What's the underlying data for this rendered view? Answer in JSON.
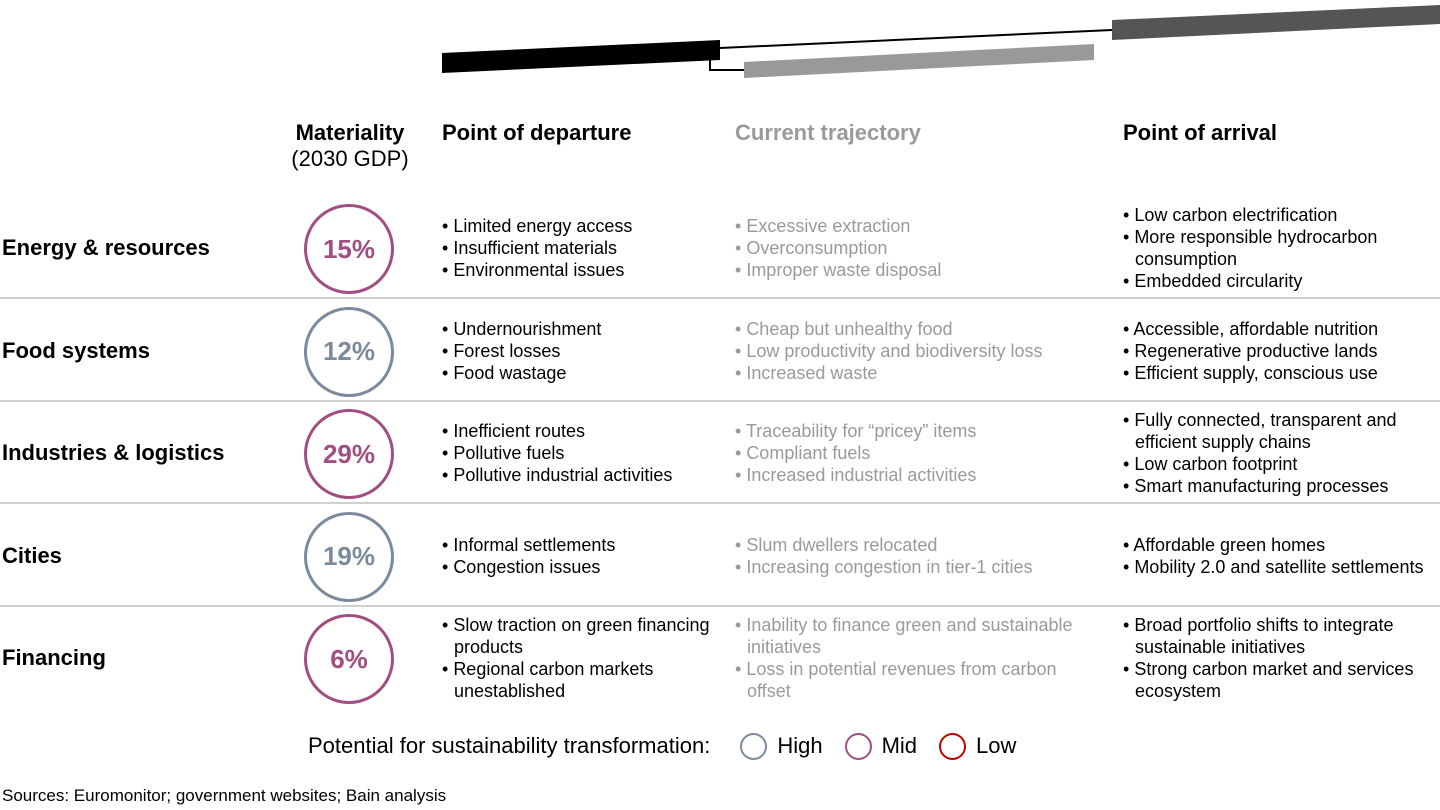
{
  "header": {
    "materiality": [
      "Materiality",
      "(2030 GDP)"
    ],
    "departure": "Point of departure",
    "trajectory": "Current trajectory",
    "arrival": "Point of arrival"
  },
  "rows": [
    {
      "name": "Energy & resources",
      "materiality": "15%",
      "color": "#a04f80",
      "departure": [
        "Limited energy access",
        "Insufficient materials",
        "Environmental issues"
      ],
      "trajectory": [
        "Excessive extraction",
        "Overconsumption",
        "Improper waste disposal"
      ],
      "arrival": [
        "Low carbon electrification",
        "More responsible hydrocarbon consumption",
        "Embedded circularity"
      ]
    },
    {
      "name": "Food systems",
      "materiality": "12%",
      "color": "#7b8a9c",
      "departure": [
        "Undernourishment",
        "Forest losses",
        "Food wastage"
      ],
      "trajectory": [
        "Cheap but unhealthy food",
        "Low productivity and biodiversity loss",
        "Increased waste"
      ],
      "arrival": [
        "Accessible, affordable nutrition",
        "Regenerative productive lands",
        "Efficient supply, conscious use"
      ]
    },
    {
      "name": "Industries & logistics",
      "materiality": "29%",
      "color": "#a04f80",
      "departure": [
        "Inefficient routes",
        "Pollutive fuels",
        "Pollutive industrial activities"
      ],
      "trajectory": [
        "Traceability for “pricey” items",
        "Compliant fuels",
        "Increased industrial activities"
      ],
      "arrival": [
        "Fully connected, transparent and efficient supply chains",
        "Low carbon footprint",
        "Smart manufacturing processes"
      ]
    },
    {
      "name": "Cities",
      "materiality": "19%",
      "color": "#7b8a9c",
      "departure": [
        "Informal settlements",
        "Congestion issues"
      ],
      "trajectory": [
        "Slum dwellers relocated",
        "Increasing congestion in tier-1 cities"
      ],
      "arrival": [
        "Affordable green homes",
        "Mobility 2.0 and satellite settlements"
      ]
    },
    {
      "name": "Financing",
      "materiality": "6%",
      "color": "#a04f80",
      "departure": [
        "Slow traction on green financing products",
        "Regional carbon markets unestablished"
      ],
      "trajectory": [
        "Inability to finance green and sustainable initiatives",
        "Loss in potential revenues from carbon offset"
      ],
      "arrival": [
        "Broad portfolio shifts to integrate sustainable initiatives",
        "Strong carbon market and services ecosystem"
      ]
    }
  ],
  "legend": {
    "title": "Potential for sustainability transformation:",
    "items": [
      {
        "label": "High",
        "color": "#7b8a9c"
      },
      {
        "label": "Mid",
        "color": "#a04f80"
      },
      {
        "label": "Low",
        "color": "#c00000"
      }
    ]
  },
  "source": "Sources: Euromonitor; government websites; Bain analysis"
}
